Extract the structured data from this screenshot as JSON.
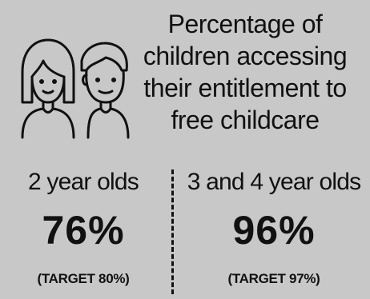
{
  "icon": {
    "name": "two-children-icon"
  },
  "title": {
    "lines": [
      "Percentage of",
      "children accessing",
      "their entitlement to",
      "free childcare"
    ]
  },
  "groups": [
    {
      "label": "2 year olds",
      "value": "76%",
      "target": "(TARGET 80%)"
    },
    {
      "label": "3 and 4 year olds",
      "value": "96%",
      "target": "(TARGET 97%)"
    }
  ],
  "colors": {
    "background": "#c8c8c8",
    "text": "#111111"
  }
}
